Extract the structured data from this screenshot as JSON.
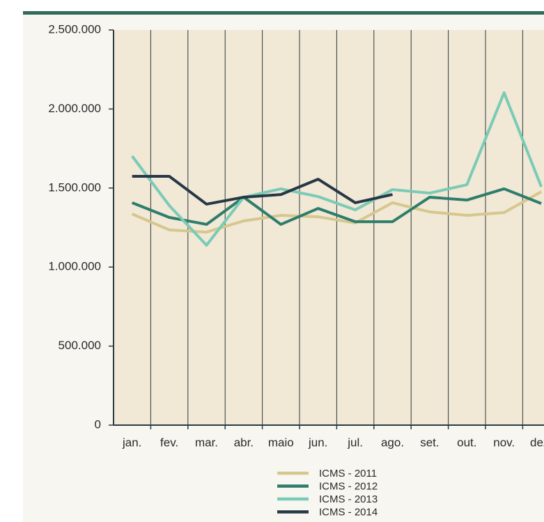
{
  "chart_data": {
    "type": "line",
    "categories": [
      "jan.",
      "fev.",
      "mar.",
      "abr.",
      "maio",
      "jun.",
      "jul.",
      "ago.",
      "set.",
      "out.",
      "nov.",
      "dez."
    ],
    "series": [
      {
        "name": "ICMS - 2011",
        "color": "#d6c78e",
        "values": [
          1336000,
          1235000,
          1221000,
          1292000,
          1327000,
          1318000,
          1279000,
          1407000,
          1349000,
          1327000,
          1345000,
          1477000
        ]
      },
      {
        "name": "ICMS - 2012",
        "color": "#2e7d6b",
        "values": [
          1407000,
          1314000,
          1270000,
          1442000,
          1270000,
          1371000,
          1287000,
          1287000,
          1442000,
          1424000,
          1495000,
          1402000
        ]
      },
      {
        "name": "ICMS - 2013",
        "color": "#7acbb6",
        "values": [
          1702000,
          1389000,
          1138000,
          1442000,
          1495000,
          1446000,
          1362000,
          1490000,
          1468000,
          1521000,
          2103000,
          1508000
        ]
      },
      {
        "name": "ICMS - 2014",
        "color": "#263845",
        "values": [
          1574000,
          1574000,
          1398000,
          1442000,
          1459000,
          1556000,
          1407000,
          1459000,
          null,
          null,
          null,
          null
        ]
      }
    ],
    "ylim": [
      0,
      2500000
    ],
    "yticks": [
      0,
      {
        "value": 500000,
        "label": "500.000"
      },
      {
        "value": 1000000,
        "label": "1.000.000"
      },
      {
        "value": 1500000,
        "label": "1.500.000"
      },
      {
        "value": 2000000,
        "label": "2.000.000"
      },
      {
        "value": 2500000,
        "label": "2.500.000"
      }
    ],
    "legend": "bottom"
  }
}
